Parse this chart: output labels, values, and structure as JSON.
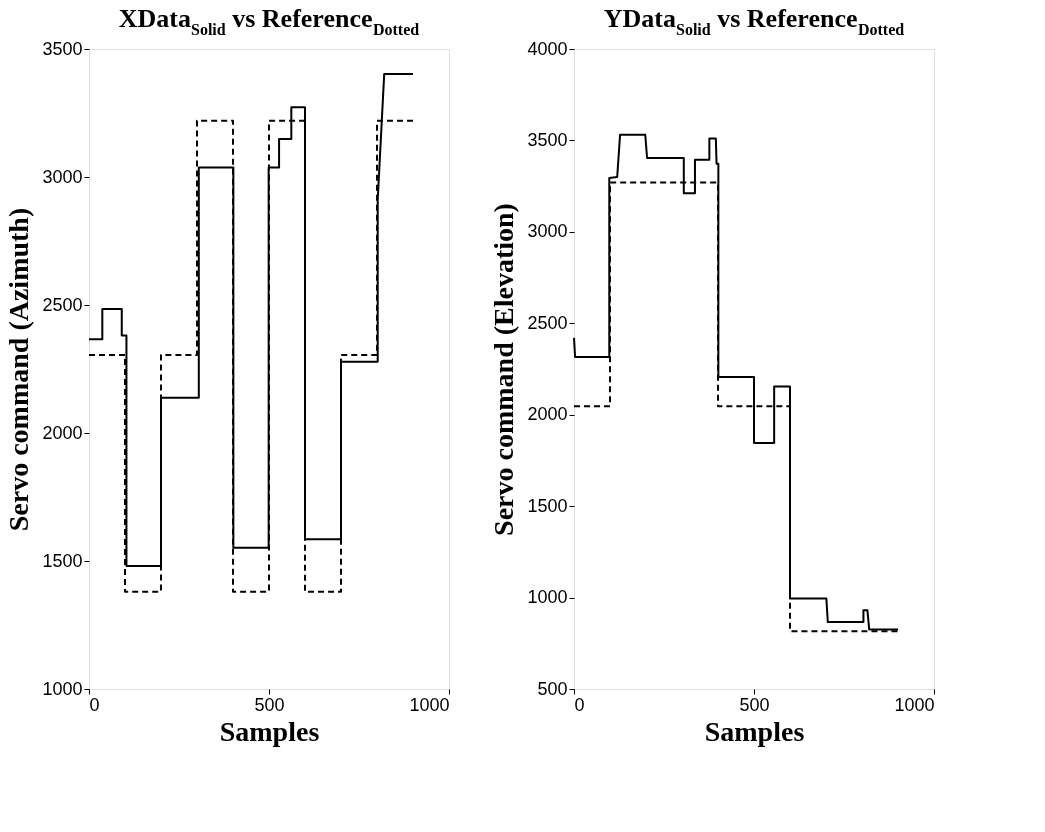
{
  "chart_data": [
    {
      "type": "line",
      "title": "XData$_{Solid}$ vs Reference$_{Dotted}$",
      "xlabel": "Samples",
      "ylabel": "Servo command (Azimuth)",
      "xlim": [
        0,
        1000
      ],
      "ylim": [
        1000,
        3500
      ],
      "xticks": [
        0,
        500,
        1000
      ],
      "yticks": [
        1000,
        1500,
        2000,
        2500,
        3000,
        3500
      ],
      "grid": false,
      "series": [
        {
          "color": "#000000",
          "line_style": "solid",
          "x": [
            0,
            37,
            37,
            91,
            91,
            104,
            104,
            200,
            200,
            305,
            305,
            401,
            401,
            499,
            499,
            528,
            528,
            562,
            562,
            600,
            600,
            700,
            700,
            802,
            802,
            820,
            900
          ],
          "values": [
            2366,
            2366,
            2484,
            2484,
            2381,
            2381,
            1480,
            1480,
            2138,
            2138,
            3037,
            3037,
            1552,
            1552,
            3037,
            3037,
            3148,
            3148,
            3272,
            3272,
            1585,
            1585,
            2278,
            2278,
            2911,
            3402,
            3402
          ]
        },
        {
          "color": "#000000",
          "line_style": "dashed",
          "x": [
            0,
            100,
            100,
            200,
            200,
            300,
            300,
            400,
            400,
            500,
            500,
            600,
            600,
            700,
            700,
            800,
            800,
            900
          ],
          "values": [
            2305,
            2305,
            1380,
            1380,
            2305,
            2305,
            3220,
            3220,
            1380,
            1380,
            3220,
            3220,
            1380,
            1380,
            2305,
            2305,
            3220,
            3220
          ]
        }
      ]
    },
    {
      "type": "line",
      "title": "YData$_{Solid}$ vs Reference$_{Dotted}$",
      "xlabel": "Samples",
      "ylabel": "Servo command (Elevation)",
      "xlim": [
        0,
        1000
      ],
      "ylim": [
        500,
        4000
      ],
      "xticks": [
        0,
        500,
        1000
      ],
      "yticks": [
        500,
        1000,
        1500,
        2000,
        2500,
        3000,
        3500,
        4000
      ],
      "grid": false,
      "series": [
        {
          "color": "#000000",
          "line_style": "solid",
          "x": [
            0,
            3,
            98,
            98,
            120,
            128,
            198,
            203,
            305,
            305,
            336,
            336,
            376,
            376,
            394,
            396,
            401,
            401,
            500,
            500,
            556,
            556,
            600,
            600,
            701,
            705,
            804,
            804,
            815,
            820,
            900
          ],
          "values": [
            2420,
            2316,
            2316,
            3295,
            3300,
            3531,
            3531,
            3404,
            3404,
            3211,
            3211,
            3395,
            3395,
            3510,
            3510,
            3373,
            3373,
            2206,
            2206,
            1845,
            1845,
            2154,
            2154,
            995,
            995,
            866,
            866,
            930,
            930,
            826,
            826
          ]
        },
        {
          "color": "#000000",
          "line_style": "dashed",
          "x": [
            0,
            100,
            100,
            400,
            400,
            600,
            600,
            900
          ],
          "values": [
            2046,
            2046,
            3270,
            3270,
            2046,
            2046,
            816,
            816
          ]
        }
      ]
    }
  ]
}
